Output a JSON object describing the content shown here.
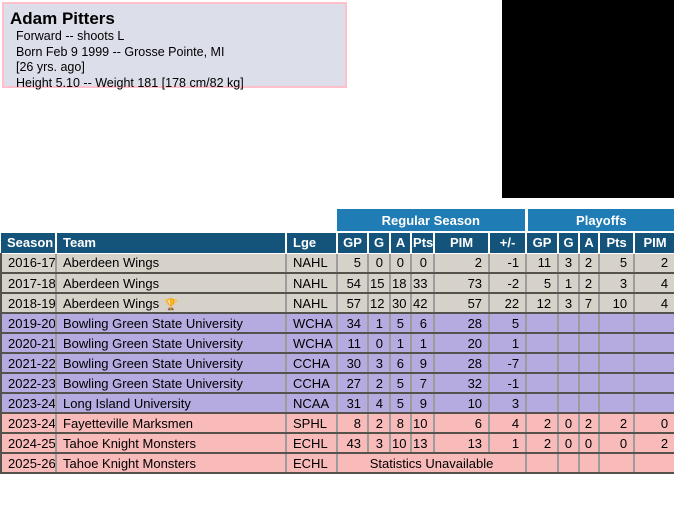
{
  "player": {
    "name": "Adam Pitters",
    "details": [
      "Forward -- shoots L",
      "Born Feb 9 1999 -- Grosse Pointe, MI",
      "[26 yrs. ago]",
      "Height 5.10 -- Weight 181 [178 cm/82 kg]"
    ]
  },
  "stats_table": {
    "group_headers": {
      "regular_season": "Regular Season",
      "playoffs": "Playoffs"
    },
    "columns": [
      "Season",
      "Team",
      "Lge",
      "GP",
      "G",
      "A",
      "Pts",
      "PIM",
      "+/-",
      "GP",
      "G",
      "A",
      "Pts",
      "PIM"
    ],
    "trophy_icon": "🏆",
    "unavailable_text": "Statistics Unavailable",
    "rows": [
      {
        "season": "2016-17",
        "team": "Aberdeen Wings",
        "trophy": false,
        "lge": "NAHL",
        "group": "gray",
        "rs": [
          "5",
          "0",
          "0",
          "0",
          "2",
          "-1"
        ],
        "po": [
          "11",
          "3",
          "2",
          "5",
          "2"
        ]
      },
      {
        "season": "2017-18",
        "team": "Aberdeen Wings",
        "trophy": false,
        "lge": "NAHL",
        "group": "gray",
        "rs": [
          "54",
          "15",
          "18",
          "33",
          "73",
          "-2"
        ],
        "po": [
          "5",
          "1",
          "2",
          "3",
          "4"
        ]
      },
      {
        "season": "2018-19",
        "team": "Aberdeen Wings",
        "trophy": true,
        "lge": "NAHL",
        "group": "gray",
        "rs": [
          "57",
          "12",
          "30",
          "42",
          "57",
          "22"
        ],
        "po": [
          "12",
          "3",
          "7",
          "10",
          "4"
        ]
      },
      {
        "season": "2019-20",
        "team": "Bowling Green State University",
        "trophy": false,
        "lge": "WCHA",
        "group": "purple",
        "rs": [
          "34",
          "1",
          "5",
          "6",
          "28",
          "5"
        ],
        "po": [
          "",
          "",
          "",
          "",
          ""
        ]
      },
      {
        "season": "2020-21",
        "team": "Bowling Green State University",
        "trophy": false,
        "lge": "WCHA",
        "group": "purple",
        "rs": [
          "11",
          "0",
          "1",
          "1",
          "20",
          "1"
        ],
        "po": [
          "",
          "",
          "",
          "",
          ""
        ]
      },
      {
        "season": "2021-22",
        "team": "Bowling Green State University",
        "trophy": false,
        "lge": "CCHA",
        "group": "purple",
        "rs": [
          "30",
          "3",
          "6",
          "9",
          "28",
          "-7"
        ],
        "po": [
          "",
          "",
          "",
          "",
          ""
        ]
      },
      {
        "season": "2022-23",
        "team": "Bowling Green State University",
        "trophy": false,
        "lge": "CCHA",
        "group": "purple",
        "rs": [
          "27",
          "2",
          "5",
          "7",
          "32",
          "-1"
        ],
        "po": [
          "",
          "",
          "",
          "",
          ""
        ]
      },
      {
        "season": "2023-24",
        "team": "Long Island University",
        "trophy": false,
        "lge": "NCAA",
        "group": "purple",
        "rs": [
          "31",
          "4",
          "5",
          "9",
          "10",
          "3"
        ],
        "po": [
          "",
          "",
          "",
          "",
          ""
        ]
      },
      {
        "season": "2023-24",
        "team": "Fayetteville Marksmen",
        "trophy": false,
        "lge": "SPHL",
        "group": "pink",
        "rs": [
          "8",
          "2",
          "8",
          "10",
          "6",
          "4"
        ],
        "po": [
          "2",
          "0",
          "2",
          "2",
          "0"
        ]
      },
      {
        "season": "2024-25",
        "team": "Tahoe Knight Monsters",
        "trophy": false,
        "lge": "ECHL",
        "group": "pink",
        "rs": [
          "43",
          "3",
          "10",
          "13",
          "13",
          "1"
        ],
        "po": [
          "2",
          "0",
          "0",
          "0",
          "2"
        ]
      },
      {
        "season": "2025-26",
        "team": "Tahoe Knight Monsters",
        "trophy": false,
        "lge": "ECHL",
        "group": "pink",
        "rs": null,
        "po": [
          "",
          "",
          "",
          "",
          ""
        ]
      }
    ]
  },
  "colors": {
    "band_blue": "#1f7cb4",
    "header_blue": "#14537a",
    "row_gray": "#d6d2c9",
    "row_purple": "#b5abe0",
    "row_pink": "#f8bbba",
    "info_box_bg": "#dcdee9",
    "info_box_border": "#ffc0cb"
  }
}
